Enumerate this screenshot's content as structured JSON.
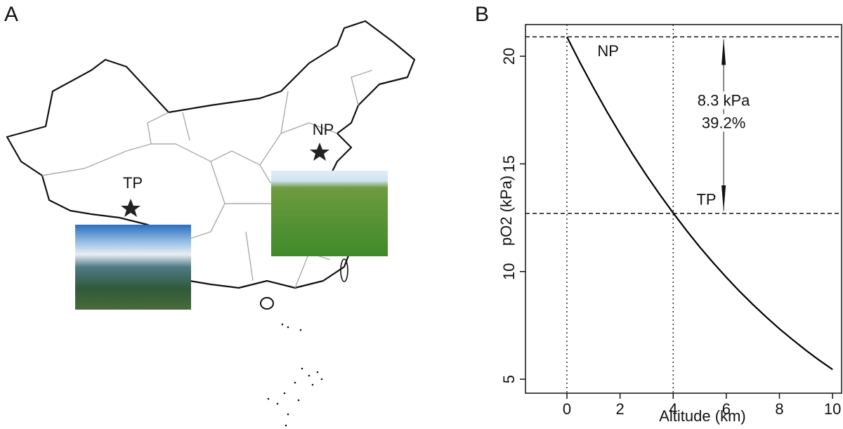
{
  "panel_a": {
    "label": "A",
    "markers": [
      "NP",
      "TP"
    ]
  },
  "chart_data": {
    "type": "line",
    "panel_label": "B",
    "x_label": "Altitude (km)",
    "y_label": "pO2 (kPa)",
    "x": [
      0,
      0.5,
      1,
      1.5,
      2,
      2.5,
      3,
      3.5,
      4,
      4.5,
      5,
      5.5,
      6,
      6.5,
      7,
      7.5,
      8,
      8.5,
      9,
      9.5,
      10
    ],
    "series": [
      {
        "color": "#000000",
        "values": [
          20.9,
          19.69,
          18.54,
          17.44,
          16.4,
          15.4,
          14.46,
          13.57,
          12.72,
          11.91,
          11.14,
          10.42,
          9.73,
          9.08,
          8.47,
          7.89,
          7.34,
          6.83,
          6.34,
          5.88,
          5.45
        ]
      }
    ],
    "xlim": [
      -1.56,
      10.34
    ],
    "ylim": [
      4.35,
      21.47
    ],
    "xticks": [
      0,
      2,
      4,
      6,
      8,
      10
    ],
    "yticks": [
      5,
      10,
      15,
      20
    ],
    "hlines": [
      20.9,
      12.7
    ],
    "vlines": [
      0,
      4
    ],
    "annotations": [
      {
        "text": "NP",
        "x": 1.55,
        "y": 20.2
      },
      {
        "text": "TP",
        "x": 5.25,
        "y": 13.3
      },
      {
        "text": "8.3 kPa",
        "x": 5.9,
        "y": 17.9
      },
      {
        "text": "39.2%",
        "x": 5.9,
        "y": 16.85
      }
    ],
    "arrow_x": 5.9
  }
}
